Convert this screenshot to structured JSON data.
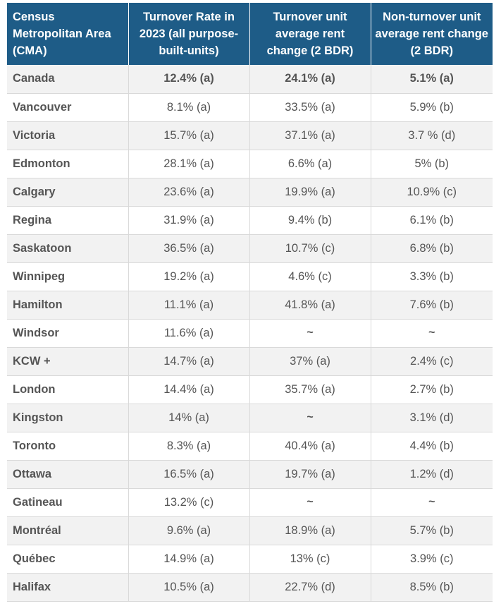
{
  "chart_data": {
    "type": "table",
    "columns": [
      "Census Metropolitan Area (CMA)",
      "Turnover Rate in 2023 (all purpose-built-units)",
      "Turnover unit average rent change (2 BDR)",
      "Non-turnover unit average rent change (2 BDR)"
    ],
    "rows": [
      [
        "Canada",
        "12.4% (a)",
        "24.1% (a)",
        "5.1% (a)"
      ],
      [
        "Vancouver",
        "8.1% (a)",
        "33.5% (a)",
        "5.9% (b)"
      ],
      [
        "Victoria",
        "15.7% (a)",
        "37.1% (a)",
        "3.7 % (d)"
      ],
      [
        "Edmonton",
        "28.1% (a)",
        "6.6% (a)",
        "5% (b)"
      ],
      [
        "Calgary",
        "23.6% (a)",
        "19.9% (a)",
        "10.9% (c)"
      ],
      [
        "Regina",
        "31.9% (a)",
        "9.4% (b)",
        "6.1% (b)"
      ],
      [
        "Saskatoon",
        "36.5% (a)",
        "10.7% (c)",
        "6.8% (b)"
      ],
      [
        "Winnipeg",
        "19.2% (a)",
        "4.6% (c)",
        "3.3% (b)"
      ],
      [
        "Hamilton",
        "11.1% (a)",
        "41.8% (a)",
        "7.6% (b)"
      ],
      [
        "Windsor",
        "11.6% (a)",
        "~",
        "~"
      ],
      [
        "KCW +",
        "14.7% (a)",
        "37% (a)",
        "2.4% (c)"
      ],
      [
        "London",
        "14.4% (a)",
        "35.7% (a)",
        "2.7% (b)"
      ],
      [
        "Kingston",
        "14% (a)",
        "~",
        "3.1% (d)"
      ],
      [
        "Toronto",
        "8.3% (a)",
        "40.4% (a)",
        "4.4% (b)"
      ],
      [
        "Ottawa",
        "16.5% (a)",
        "19.7% (a)",
        "1.2% (d)"
      ],
      [
        "Gatineau",
        "13.2% (c)",
        "~",
        "~"
      ],
      [
        "Montréal",
        "9.6% (a)",
        "18.9% (a)",
        "5.7% (b)"
      ],
      [
        "Québec",
        "14.9% (a)",
        "13% (c)",
        "3.9% (c)"
      ],
      [
        "Halifax",
        "10.5% (a)",
        "22.7% (d)",
        "8.5% (b)"
      ]
    ]
  },
  "colors": {
    "header_bg": "#1e5c87",
    "header_text": "#ffffff",
    "row_alt_bg": "#f2f2f2",
    "body_text": "#555555"
  }
}
